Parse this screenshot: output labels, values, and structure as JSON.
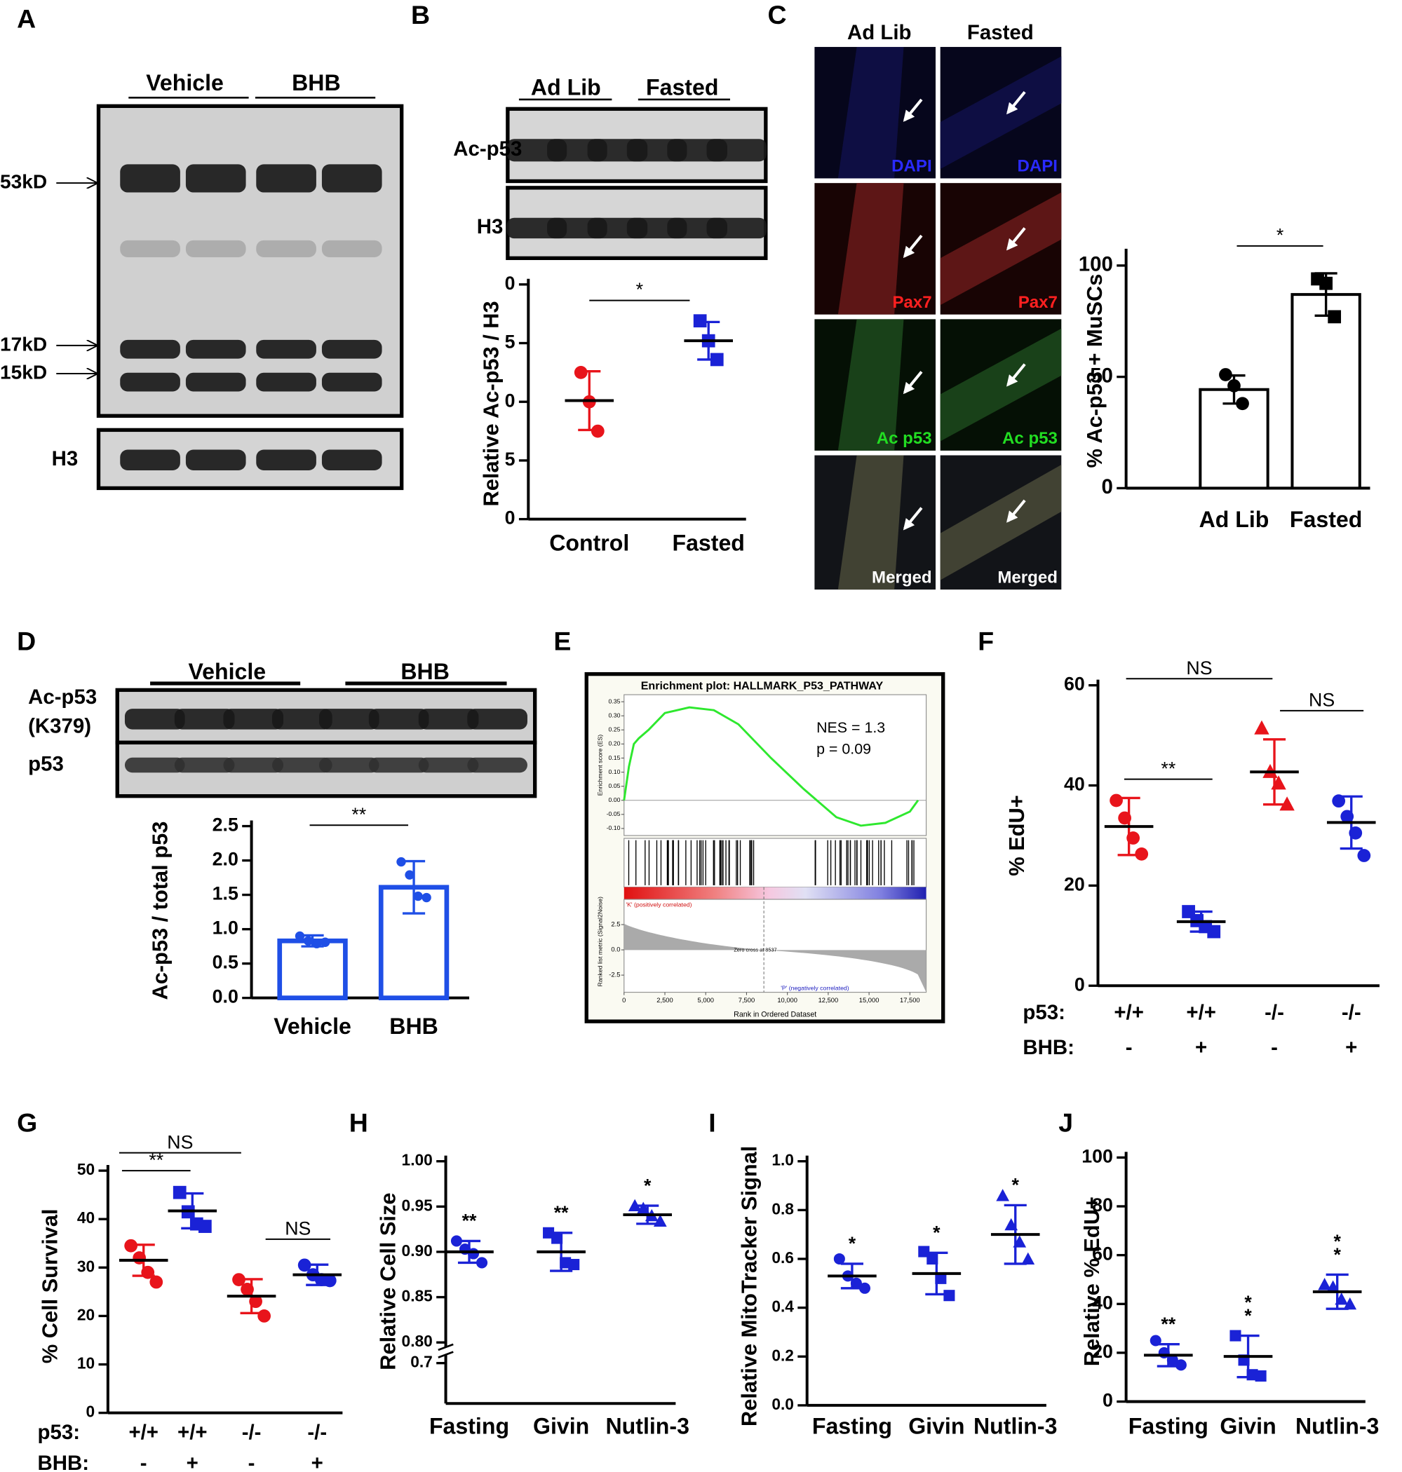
{
  "panel_letters": [
    "A",
    "B",
    "C",
    "D",
    "E",
    "F",
    "G",
    "H",
    "I",
    "J"
  ],
  "blot_a": {
    "groups": [
      "Vehicle",
      "BHB"
    ],
    "markers": [
      "53kD",
      "17kD",
      "15kD"
    ],
    "loading": "H3"
  },
  "blot_b": {
    "groups": [
      "Ad Lib",
      "Fasted"
    ],
    "rows": [
      "Ac-p53",
      "H3"
    ]
  },
  "micrographs": {
    "columns": [
      "Ad Lib",
      "Fasted"
    ],
    "channels": [
      "DAPI",
      "Pax7",
      "Ac p53",
      "Merged"
    ]
  },
  "blot_d": {
    "groups": [
      "Vehicle",
      "BHB"
    ],
    "rows": [
      "Ac-p53",
      "p53"
    ],
    "row_note": "(K379)"
  },
  "chart_data": [
    {
      "type": "dot_plot",
      "ylabel": "Relative Ac-p53 / H3",
      "categories": [
        "Control",
        "Fasted"
      ],
      "ylim": [
        0,
        20
      ],
      "yticks": [
        0,
        5,
        {
          "value": 10,
          "label": "0"
        },
        {
          "value": 15,
          "label": "5"
        },
        {
          "value": 20,
          "label": "0"
        }
      ],
      "groups": [
        {
          "color": "#e8141b",
          "marker": "circle",
          "points": [
            12.5,
            10,
            7.5
          ],
          "mean": 10.1,
          "sd": 2.5
        },
        {
          "color": "#1a22d6",
          "marker": "square",
          "points": [
            16.9,
            15.2,
            13.6
          ],
          "mean": 15.2,
          "sd": 1.6
        }
      ],
      "significance": [
        "*"
      ]
    },
    {
      "type": "bar",
      "ylabel": "%  Ac-p53 + MuSCs",
      "categories": [
        "Ad Lib",
        "Fasted"
      ],
      "ylim": [
        0,
        105
      ],
      "yticks": [
        0,
        50,
        100
      ],
      "bar_color": "#000000",
      "groups": [
        {
          "color": "#000000",
          "marker": "circle",
          "points": [
            51,
            46,
            38
          ],
          "mean": 44.3,
          "sd": 6.3
        },
        {
          "color": "#000000",
          "marker": "square",
          "points": [
            94,
            92,
            77
          ],
          "mean": 87,
          "sd": 9.5
        }
      ],
      "significance": [
        "*"
      ]
    },
    {
      "type": "bar",
      "ylabel": "Ac-p53 / total p53",
      "categories": [
        "Vehicle",
        "BHB"
      ],
      "ylim": [
        0,
        2.5
      ],
      "yticks": [
        {
          "value": 0,
          "label": "0.0"
        },
        0.5,
        {
          "value": 1,
          "label": "1.0"
        },
        1.5,
        {
          "value": 2,
          "label": "2.0"
        },
        2.5
      ],
      "bar_color": "#1f4fe6",
      "groups": [
        {
          "color": "#1f4fe6",
          "marker": "circle",
          "points": [
            0.9,
            0.83,
            0.79,
            0.81
          ],
          "mean": 0.83,
          "sd": 0.08
        },
        {
          "color": "#1f4fe6",
          "marker": "circle",
          "points": [
            1.98,
            1.79,
            1.48,
            1.46
          ],
          "mean": 1.61,
          "sd": 0.38
        }
      ],
      "significance": [
        "**"
      ]
    },
    {
      "type": "gsea",
      "title": "Enrichment plot: HALLMARK_P53_PATHWAY",
      "nes_text": "NES = 1.3",
      "p_text": "p = 0.09",
      "ylabel": "Enrichment score (ES)",
      "metric_label": "Ranked list metric (Signal2Noise)",
      "xlabel": "Rank in Ordered Dataset",
      "pos_label": "'K' (positively correlated)",
      "neg_label": "'P' (negatively correlated)",
      "zero_cross": "Zero cross at 8537",
      "color": "#2ee82e",
      "xlim": [
        0,
        18500
      ],
      "ylim": [
        -0.125,
        0.375
      ],
      "x": [
        0,
        300,
        600,
        900,
        1500,
        2500,
        4000,
        5500,
        7000,
        9000,
        11000,
        13000,
        14500,
        16000,
        17500,
        18000
      ],
      "values": [
        0,
        0.12,
        0.2,
        0.22,
        0.25,
        0.31,
        0.33,
        0.32,
        0.27,
        0.15,
        0.04,
        -0.06,
        -0.09,
        -0.08,
        -0.04,
        0
      ],
      "xticks": [
        0,
        {
          "value": 2500,
          "label": "2,500"
        },
        {
          "value": 5000,
          "label": "5,000"
        },
        {
          "value": 7500,
          "label": "7,500"
        },
        {
          "value": 10000,
          "label": "10,000"
        },
        {
          "value": 12500,
          "label": "12,500"
        },
        {
          "value": 15000,
          "label": "15,000"
        },
        {
          "value": 17500,
          "label": "17,500"
        }
      ],
      "yticks": [
        0.35,
        {
          "value": 0.3,
          "label": "0.30"
        },
        0.25,
        {
          "value": 0.2,
          "label": "0.20"
        },
        0.15,
        {
          "value": 0.1,
          "label": "0.10"
        },
        0.05,
        {
          "value": 0,
          "label": "0.00"
        },
        -0.05,
        {
          "value": -0.1,
          "label": "-0.10"
        }
      ],
      "metric_ylim": [
        -4.2,
        5
      ],
      "metric_ticks": [
        2.5,
        {
          "value": 0,
          "label": "0.0"
        },
        -2.5
      ]
    },
    {
      "type": "dot_plot",
      "ylabel": "% EdU+",
      "category_rows": [
        {
          "label": "p53:",
          "values": [
            "+/+",
            "+/+",
            "-/-",
            "-/-"
          ]
        },
        {
          "label": "BHB:",
          "values": [
            "-",
            "+",
            "-",
            "+"
          ]
        }
      ],
      "ylim": [
        0,
        60
      ],
      "yticks": [
        0,
        20,
        40,
        60
      ],
      "groups": [
        {
          "color": "#e8141b",
          "marker": "circle",
          "points": [
            37,
            33.5,
            29.5,
            26.3
          ],
          "mean": 31.8,
          "sd": 5.7
        },
        {
          "color": "#1a22d6",
          "marker": "square",
          "points": [
            14.8,
            13,
            11.8,
            10.8
          ],
          "mean": 12.8,
          "sd": 2
        },
        {
          "color": "#e8141b",
          "marker": "triangle",
          "points": [
            51.5,
            42.8,
            40.5,
            36.3
          ],
          "mean": 42.7,
          "sd": 6.5
        },
        {
          "color": "#1a22d6",
          "marker": "circle",
          "points": [
            36.9,
            33.8,
            30.5,
            26
          ],
          "mean": 32.6,
          "sd": 5.2
        }
      ],
      "significance": [
        "NS",
        "**",
        "NS"
      ]
    },
    {
      "type": "dot_plot",
      "ylabel": "% Cell Survival",
      "category_rows": [
        {
          "label": "p53:",
          "values": [
            "+/+",
            "+/+",
            "-/-",
            "-/-"
          ]
        },
        {
          "label": "BHB:",
          "values": [
            "-",
            "+",
            "-",
            "+"
          ]
        }
      ],
      "ylim": [
        0,
        50
      ],
      "yticks": [
        0,
        10,
        20,
        30,
        40,
        50
      ],
      "groups": [
        {
          "color": "#e8141b",
          "marker": "circle",
          "points": [
            34.5,
            32,
            29,
            27
          ],
          "mean": 31.5,
          "sd": 3.2
        },
        {
          "color": "#1a22d6",
          "marker": "square",
          "points": [
            45.5,
            41.5,
            39,
            38.5
          ],
          "mean": 41.7,
          "sd": 3.6
        },
        {
          "color": "#e8141b",
          "marker": "circle",
          "points": [
            27.5,
            25.5,
            23,
            20
          ],
          "mean": 24.1,
          "sd": 3.5
        },
        {
          "color": "#1a22d6",
          "marker": "circle",
          "points": [
            30.5,
            28.5,
            27.5,
            27.3
          ],
          "mean": 28.5,
          "sd": 2.1
        }
      ],
      "significance": [
        "NS",
        "**",
        "NS"
      ]
    },
    {
      "type": "dot_plot",
      "ylabel": "Relative Cell Size",
      "categories": [
        "Fasting",
        "Givin",
        "Nutlin-3"
      ],
      "ylim": [
        0.7,
        1
      ],
      "axis_break": [
        0.7,
        0.8
      ],
      "yticks": [
        0.7,
        {
          "value": 0.8,
          "label": "0.80"
        },
        0.85,
        {
          "value": 0.9,
          "label": "0.90"
        },
        0.95,
        {
          "value": 1,
          "label": "1.00"
        }
      ],
      "groups": [
        {
          "color": "#1a22d6",
          "marker": "circle",
          "points": [
            0.912,
            0.903,
            0.898,
            0.888
          ],
          "mean": 0.9,
          "sd": 0.012
        },
        {
          "color": "#1a22d6",
          "marker": "square",
          "points": [
            0.921,
            0.915,
            0.888,
            0.886
          ],
          "mean": 0.9,
          "sd": 0.021
        },
        {
          "color": "#1a22d6",
          "marker": "triangle",
          "points": [
            0.951,
            0.948,
            0.94,
            0.934
          ],
          "mean": 0.941,
          "sd": 0.01
        }
      ],
      "significance": [
        [
          "**"
        ],
        [
          "**"
        ],
        [
          "*"
        ]
      ]
    },
    {
      "type": "dot_plot",
      "ylabel": "Relative MitoTracker Signal",
      "categories": [
        "Fasting",
        "Givin",
        "Nutlin-3"
      ],
      "ylim": [
        0,
        1
      ],
      "yticks": [
        {
          "value": 0,
          "label": "0.0"
        },
        0.2,
        0.4,
        0.6,
        0.8,
        {
          "value": 1,
          "label": "1.0"
        }
      ],
      "groups": [
        {
          "color": "#1a22d6",
          "marker": "circle",
          "points": [
            0.6,
            0.53,
            0.5,
            0.48
          ],
          "mean": 0.53,
          "sd": 0.05
        },
        {
          "color": "#1a22d6",
          "marker": "square",
          "points": [
            0.63,
            0.6,
            0.52,
            0.45
          ],
          "mean": 0.54,
          "sd": 0.085
        },
        {
          "color": "#1a22d6",
          "marker": "triangle",
          "points": [
            0.86,
            0.74,
            0.67,
            0.6
          ],
          "mean": 0.7,
          "sd": 0.12
        }
      ],
      "significance": [
        [
          "*"
        ],
        [
          "*"
        ],
        [
          "*"
        ]
      ]
    },
    {
      "type": "dot_plot",
      "ylabel": "Relative % EdU+",
      "categories": [
        "Fasting",
        "Givin",
        "Nutlin-3"
      ],
      "ylim": [
        0,
        100
      ],
      "yticks": [
        0,
        20,
        40,
        60,
        80,
        100
      ],
      "groups": [
        {
          "color": "#1a22d6",
          "marker": "circle",
          "points": [
            25,
            20,
            17,
            15
          ],
          "mean": 19,
          "sd": 4.5
        },
        {
          "color": "#1a22d6",
          "marker": "square",
          "points": [
            27,
            17,
            11,
            10.5
          ],
          "mean": 18.5,
          "sd": 8.5
        },
        {
          "color": "#1a22d6",
          "marker": "triangle",
          "points": [
            48,
            47,
            42,
            40
          ],
          "mean": 45,
          "sd": 7
        }
      ],
      "significance": [
        [
          "**"
        ],
        [
          "*",
          "*"
        ],
        [
          "*",
          "*"
        ]
      ]
    }
  ]
}
